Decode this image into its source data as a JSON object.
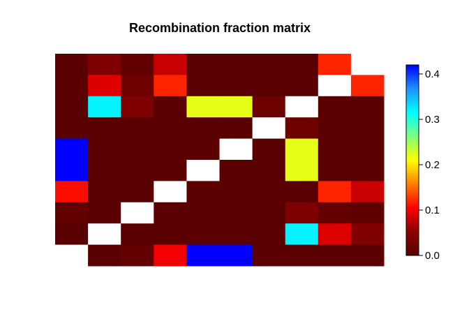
{
  "chart_data": {
    "type": "heatmap",
    "title": "Recombination fraction matrix",
    "xlabel": "",
    "ylabel": "",
    "rows_top_to_bottom": [
      [
        0.0,
        0.04,
        0.01,
        0.08,
        0.0,
        0.0,
        0.0,
        0.0,
        0.12,
        null
      ],
      [
        0.0,
        0.09,
        0.02,
        0.12,
        0.0,
        0.0,
        0.0,
        0.0,
        null,
        0.12
      ],
      [
        0.0,
        0.32,
        0.04,
        0.0,
        0.22,
        0.22,
        0.02,
        null,
        0.0,
        0.0
      ],
      [
        0.0,
        0.0,
        0.0,
        0.0,
        0.0,
        0.0,
        null,
        0.02,
        0.0,
        0.0
      ],
      [
        0.42,
        0.0,
        0.0,
        0.0,
        0.0,
        null,
        0.0,
        0.22,
        0.0,
        0.0
      ],
      [
        0.42,
        0.0,
        0.0,
        0.0,
        null,
        0.0,
        0.0,
        0.22,
        0.0,
        0.0
      ],
      [
        0.11,
        0.0,
        0.0,
        null,
        0.0,
        0.0,
        0.0,
        0.0,
        0.12,
        0.08
      ],
      [
        0.01,
        0.0,
        null,
        0.0,
        0.0,
        0.0,
        0.0,
        0.04,
        0.01,
        0.005
      ],
      [
        0.0,
        null,
        0.0,
        0.0,
        0.0,
        0.0,
        0.0,
        0.32,
        0.09,
        0.04
      ],
      [
        null,
        0.0,
        0.01,
        0.1,
        0.42,
        0.42,
        0.0,
        0.0,
        0.0,
        0.0
      ]
    ],
    "colorbar": {
      "range": [
        0,
        0.42
      ],
      "ticks": [
        "0.0",
        "0.1",
        "0.2",
        "0.3",
        "0.4"
      ],
      "tick_values": [
        0,
        0.1,
        0.2,
        0.3,
        0.4
      ],
      "colors_low_to_high": [
        "#5a0000",
        "#8b0000",
        "#ff0000",
        "#ff7f00",
        "#ffff00",
        "#7fff7f",
        "#00ffff",
        "#1e90ff",
        "#0000ff"
      ]
    },
    "missing_color": "#ffffff",
    "grid": false,
    "legend_placement": "right"
  }
}
